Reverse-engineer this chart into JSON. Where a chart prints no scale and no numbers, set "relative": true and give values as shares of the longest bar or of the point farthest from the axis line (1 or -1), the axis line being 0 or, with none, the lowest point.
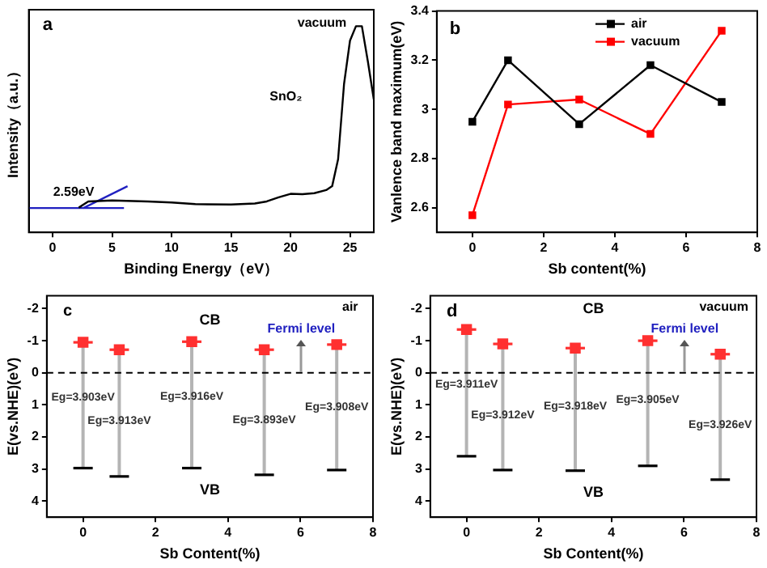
{
  "chart_data": [
    {
      "type": "line",
      "relative": true,
      "xlabel": "Binding Energy（eV）",
      "ylabel": "Intensity（a.u.）",
      "xlim": [
        -2,
        27
      ],
      "xticks": [
        0,
        5,
        10,
        15,
        20,
        25
      ],
      "annotations": [
        "a",
        "vacuum",
        "SnO₂",
        "2.59eV"
      ],
      "series": [
        {
          "color": "#000000",
          "x": [
            2.2,
            3,
            5,
            8,
            10,
            12,
            15,
            17,
            18,
            19,
            20,
            21,
            22,
            23,
            23.5,
            24,
            24.5,
            25,
            25.5,
            26,
            26.5,
            27
          ],
          "values": [
            0.12,
            0.15,
            0.155,
            0.15,
            0.145,
            0.137,
            0.135,
            0.14,
            0.15,
            0.17,
            0.187,
            0.185,
            0.19,
            0.205,
            0.224,
            0.355,
            0.72,
            0.93,
            1,
            1,
            0.83,
            0.645
          ]
        },
        {
          "color": "#2020c0",
          "x": [
            -2,
            6
          ],
          "values": [
            0.118,
            0.118
          ]
        },
        {
          "color": "#2020c0",
          "x": [
            2.59,
            6.3
          ],
          "values": [
            0.118,
            0.224
          ]
        }
      ]
    },
    {
      "type": "line",
      "xlabel": "Sb content(%)",
      "ylabel": "Vanlence band maximum(eV)",
      "x": [
        0,
        1,
        3,
        5,
        7
      ],
      "xlim": [
        -1,
        8
      ],
      "xticks": [
        0,
        2,
        4,
        6,
        8
      ],
      "ylim": [
        2.5,
        3.4
      ],
      "yticks": [
        2.6,
        2.8,
        3.0,
        3.2,
        3.4
      ],
      "marker": "square",
      "legend": "top right",
      "annotations": [
        "b"
      ],
      "series": [
        {
          "name": "air",
          "color": "#000000",
          "values": [
            2.95,
            3.2,
            2.94,
            3.18,
            3.03
          ]
        },
        {
          "name": "vacuum",
          "color": "#ff0000",
          "values": [
            2.57,
            3.02,
            3.04,
            2.9,
            3.32
          ]
        }
      ]
    },
    {
      "type": "scatter",
      "xlabel": "Sb Content(%)",
      "ylabel": "E(vs.NHE)(eV)",
      "x": [
        0,
        1,
        3,
        5,
        7
      ],
      "xlim": [
        -1,
        8
      ],
      "xticks": [
        0,
        2,
        4,
        6,
        8
      ],
      "ylim": [
        4.5,
        -2.4
      ],
      "yticks": [
        -2,
        -1,
        0,
        1,
        2,
        3,
        4
      ],
      "ref_lines": [
        {
          "axis": "y",
          "value": 0,
          "color": "#000000",
          "line_style": "dashed"
        }
      ],
      "annotations": [
        "c",
        "air",
        "CB",
        "VB",
        "Fermi level",
        "Eg=3.903eV",
        "Eg=3.913eV",
        "Eg=3.916eV",
        "Eg=3.893eV",
        "Eg=3.908eV"
      ],
      "series": [
        {
          "color": "#ff3030",
          "marker": "square",
          "values": [
            -0.95,
            -0.72,
            -0.97,
            -0.72,
            -0.88
          ],
          "errors": [
            [
              -0.95,
              2.97
            ],
            [
              -0.72,
              3.23
            ],
            [
              -0.97,
              2.97
            ],
            [
              -0.72,
              3.18
            ],
            [
              -0.88,
              3.03
            ]
          ]
        }
      ]
    },
    {
      "type": "scatter",
      "xlabel": "Sb Content(%)",
      "ylabel": "E(vs.NHE)(eV)",
      "x": [
        0,
        1,
        3,
        5,
        7
      ],
      "xlim": [
        -1,
        8
      ],
      "xticks": [
        0,
        2,
        4,
        6,
        8
      ],
      "ylim": [
        4.5,
        -2.4
      ],
      "yticks": [
        -2,
        -1,
        0,
        1,
        2,
        3,
        4
      ],
      "ref_lines": [
        {
          "axis": "y",
          "value": 0,
          "color": "#000000",
          "line_style": "dashed"
        }
      ],
      "annotations": [
        "d",
        "vacuum",
        "CB",
        "VB",
        "Fermi level",
        "Eg=3.911eV",
        "Eg=3.912eV",
        "Eg=3.918eV",
        "Eg=3.905eV",
        "Eg=3.926eV"
      ],
      "series": [
        {
          "color": "#ff3030",
          "marker": "square",
          "values": [
            -1.35,
            -0.9,
            -0.77,
            -1.0,
            -0.58
          ],
          "errors": [
            [
              -1.35,
              2.6
            ],
            [
              -0.9,
              3.03
            ],
            [
              -0.77,
              3.05
            ],
            [
              -1.0,
              2.9
            ],
            [
              -0.58,
              3.33
            ]
          ]
        }
      ]
    }
  ]
}
